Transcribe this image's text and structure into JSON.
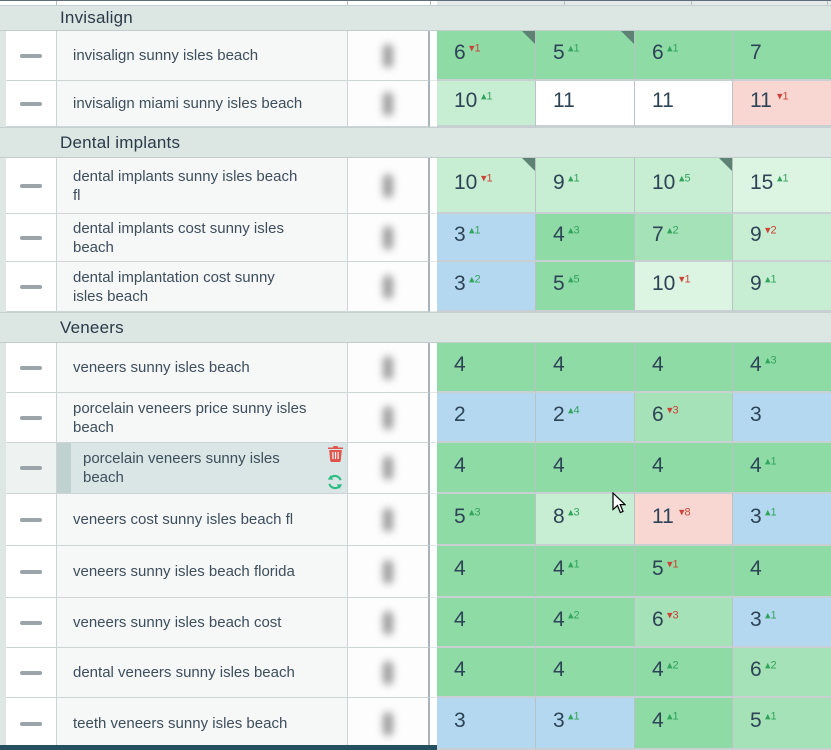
{
  "colors": {
    "g1": "#8edba6",
    "g2": "#a6e2b8",
    "g3": "#c7eed2",
    "g4": "#dcf4e2",
    "blue": "#b5d8f1",
    "white": "#ffffff",
    "pink": "#f8d7d2",
    "up_green": "#33a45c",
    "down_red": "#cc4437",
    "flag": "#5d8173",
    "highlight_row": "#d9e6e5",
    "delete_icon": "#e0564c",
    "refresh_icon": "#2cbd85"
  },
  "row_actions": {
    "delete": "trash-icon",
    "refresh": "refresh-icon"
  },
  "groups": [
    {
      "label": "Invisalign",
      "rows": [
        {
          "keyword": "invisalign sunny isles beach",
          "cells": [
            {
              "rank": "6",
              "change": -1,
              "bg": "g1",
              "flag": true
            },
            {
              "rank": "5",
              "change": 1,
              "bg": "g1",
              "flag": true
            },
            {
              "rank": "6",
              "change": 1,
              "bg": "g1",
              "flag": false
            },
            {
              "rank": "7",
              "change": 0,
              "bg": "g1",
              "flag": false
            }
          ]
        },
        {
          "keyword": "invisalign miami sunny isles beach",
          "cells": [
            {
              "rank": "10",
              "change": 1,
              "bg": "g3",
              "flag": false
            },
            {
              "rank": "11",
              "change": 0,
              "bg": "white",
              "flag": false
            },
            {
              "rank": "11",
              "change": 0,
              "bg": "white",
              "flag": false
            },
            {
              "rank": "11",
              "change": -1,
              "bg": "pink",
              "flag": false
            }
          ]
        }
      ]
    },
    {
      "label": "Dental implants",
      "rows": [
        {
          "keyword": "dental implants sunny isles beach fl",
          "cells": [
            {
              "rank": "10",
              "change": -1,
              "bg": "g3",
              "flag": true
            },
            {
              "rank": "9",
              "change": 1,
              "bg": "g3",
              "flag": false
            },
            {
              "rank": "10",
              "change": 5,
              "bg": "g3",
              "flag": true
            },
            {
              "rank": "15",
              "change": 1,
              "bg": "g4",
              "flag": false
            }
          ]
        },
        {
          "keyword": "dental implants cost sunny isles beach",
          "cells": [
            {
              "rank": "3",
              "change": 1,
              "bg": "blue",
              "flag": false
            },
            {
              "rank": "4",
              "change": 3,
              "bg": "g1",
              "flag": false
            },
            {
              "rank": "7",
              "change": 2,
              "bg": "g2",
              "flag": false
            },
            {
              "rank": "9",
              "change": -2,
              "bg": "g3",
              "flag": false
            }
          ]
        },
        {
          "keyword": "dental implantation cost sunny isles beach",
          "cells": [
            {
              "rank": "3",
              "change": 2,
              "bg": "blue",
              "flag": false
            },
            {
              "rank": "5",
              "change": 5,
              "bg": "g1",
              "flag": false
            },
            {
              "rank": "10",
              "change": -1,
              "bg": "g4",
              "flag": false
            },
            {
              "rank": "9",
              "change": 1,
              "bg": "g3",
              "flag": false
            }
          ]
        }
      ]
    },
    {
      "label": "Veneers",
      "rows": [
        {
          "keyword": "veneers sunny isles beach",
          "cells": [
            {
              "rank": "4",
              "change": 0,
              "bg": "g1",
              "flag": false
            },
            {
              "rank": "4",
              "change": 0,
              "bg": "g1",
              "flag": false
            },
            {
              "rank": "4",
              "change": 0,
              "bg": "g1",
              "flag": false
            },
            {
              "rank": "4",
              "change": 3,
              "bg": "g1",
              "flag": false
            }
          ]
        },
        {
          "keyword": "porcelain veneers price sunny isles beach",
          "cells": [
            {
              "rank": "2",
              "change": 0,
              "bg": "blue",
              "flag": false
            },
            {
              "rank": "2",
              "change": 4,
              "bg": "blue",
              "flag": false
            },
            {
              "rank": "6",
              "change": -3,
              "bg": "g2",
              "flag": false
            },
            {
              "rank": "3",
              "change": 0,
              "bg": "blue",
              "flag": false
            }
          ]
        },
        {
          "keyword": "porcelain veneers sunny isles beach",
          "highlighted": true,
          "cells": [
            {
              "rank": "4",
              "change": 0,
              "bg": "g1",
              "flag": false
            },
            {
              "rank": "4",
              "change": 0,
              "bg": "g1",
              "flag": false
            },
            {
              "rank": "4",
              "change": 0,
              "bg": "g1",
              "flag": false
            },
            {
              "rank": "4",
              "change": 1,
              "bg": "g1",
              "flag": false
            }
          ]
        },
        {
          "keyword": "veneers cost sunny isles beach fl",
          "cells": [
            {
              "rank": "5",
              "change": 3,
              "bg": "g1",
              "flag": false
            },
            {
              "rank": "8",
              "change": 3,
              "bg": "g3",
              "flag": false
            },
            {
              "rank": "11",
              "change": -8,
              "bg": "pink",
              "flag": false
            },
            {
              "rank": "3",
              "change": 1,
              "bg": "blue",
              "flag": false
            }
          ]
        },
        {
          "keyword": "veneers sunny isles beach florida",
          "cells": [
            {
              "rank": "4",
              "change": 0,
              "bg": "g1",
              "flag": false
            },
            {
              "rank": "4",
              "change": 1,
              "bg": "g1",
              "flag": false
            },
            {
              "rank": "5",
              "change": -1,
              "bg": "g1",
              "flag": false
            },
            {
              "rank": "4",
              "change": 0,
              "bg": "g1",
              "flag": false
            }
          ]
        },
        {
          "keyword": "veneers sunny isles beach cost",
          "cells": [
            {
              "rank": "4",
              "change": 0,
              "bg": "g1",
              "flag": false
            },
            {
              "rank": "4",
              "change": 2,
              "bg": "g1",
              "flag": false
            },
            {
              "rank": "6",
              "change": -3,
              "bg": "g2",
              "flag": false
            },
            {
              "rank": "3",
              "change": 1,
              "bg": "blue",
              "flag": false
            }
          ]
        },
        {
          "keyword": "dental veneers sunny isles beach",
          "cells": [
            {
              "rank": "4",
              "change": 0,
              "bg": "g1",
              "flag": false
            },
            {
              "rank": "4",
              "change": 0,
              "bg": "g1",
              "flag": false
            },
            {
              "rank": "4",
              "change": 2,
              "bg": "g1",
              "flag": false
            },
            {
              "rank": "6",
              "change": 2,
              "bg": "g2",
              "flag": false
            }
          ]
        },
        {
          "keyword": "teeth veneers sunny isles beach",
          "cells": [
            {
              "rank": "3",
              "change": 0,
              "bg": "blue",
              "flag": false
            },
            {
              "rank": "3",
              "change": 1,
              "bg": "blue",
              "flag": false
            },
            {
              "rank": "4",
              "change": 1,
              "bg": "g1",
              "flag": false
            },
            {
              "rank": "5",
              "change": 1,
              "bg": "g2",
              "flag": false
            }
          ]
        }
      ]
    }
  ]
}
